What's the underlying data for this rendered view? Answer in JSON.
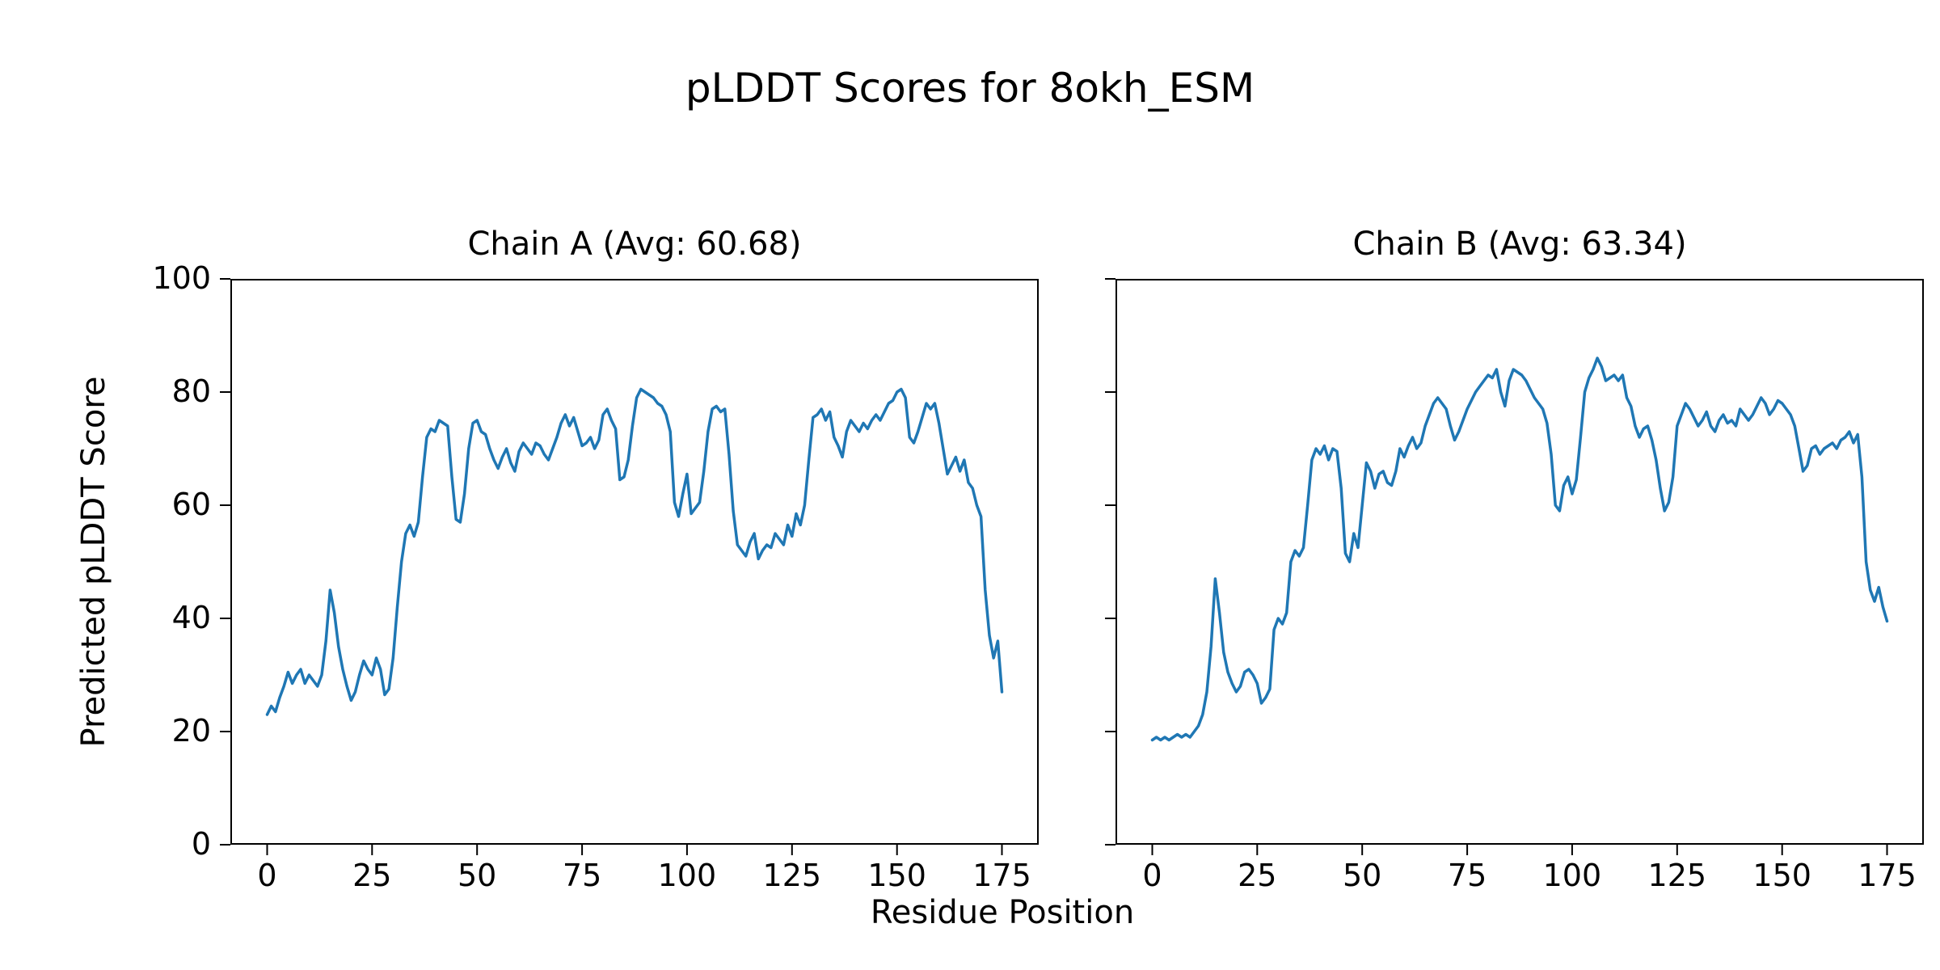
{
  "chart_data": {
    "type": "line",
    "title": "pLDDT Scores for 8okh_ESM",
    "xlabel": "Residue Position",
    "ylabel": "Predicted pLDDT Score",
    "line_color": "#1f77b4",
    "grid": false,
    "legend": "none",
    "xlim": [
      -8.75,
      183.75
    ],
    "ylim": [
      0,
      100
    ],
    "xticks": [
      0,
      25,
      50,
      75,
      100,
      125,
      150,
      175
    ],
    "yticks": [
      0,
      20,
      40,
      60,
      80,
      100
    ],
    "subplots": [
      {
        "title": "Chain A (Avg: 60.68)",
        "avg": 60.68,
        "x_start": 0,
        "values": [
          23,
          24.5,
          23.5,
          26,
          28,
          30.5,
          28.5,
          30,
          31,
          28.5,
          30,
          29,
          28,
          30,
          36,
          45,
          41,
          35,
          31,
          28,
          25.5,
          27,
          30,
          32.5,
          31,
          30,
          33,
          31,
          26.5,
          27.5,
          33,
          42,
          50,
          55,
          56.5,
          54.5,
          57,
          65,
          72,
          73.5,
          73,
          75,
          74.5,
          74,
          65,
          57.5,
          57,
          62,
          70,
          74.5,
          75,
          73,
          72.5,
          70,
          68,
          66.5,
          68.5,
          70,
          67.5,
          66,
          69.5,
          71,
          70,
          69,
          71,
          70.5,
          69,
          68,
          70,
          72,
          74.5,
          76,
          74,
          75.5,
          73,
          70.5,
          71,
          72,
          70,
          71.5,
          76,
          77,
          75,
          73.5,
          64.5,
          65,
          68,
          74,
          79,
          80.5,
          80,
          79.5,
          79,
          78,
          77.5,
          76,
          73,
          60.5,
          58,
          62,
          65.5,
          58.5,
          59.5,
          60.5,
          66,
          73,
          77,
          77.5,
          76.5,
          77,
          69,
          59,
          53,
          52,
          51,
          53.5,
          55,
          50.5,
          52,
          53,
          52.5,
          55,
          54,
          53,
          56.5,
          54.5,
          58.5,
          56.5,
          60,
          68,
          75.5,
          76,
          77,
          75,
          76.5,
          72,
          70.5,
          68.5,
          73,
          75,
          74,
          73,
          74.5,
          73.5,
          75,
          76,
          75,
          76.5,
          78,
          78.5,
          80,
          80.5,
          79,
          72,
          71,
          73,
          75.5,
          78,
          77,
          78,
          74.5,
          70,
          65.5,
          67,
          68.5,
          66,
          68,
          64,
          63,
          60,
          58,
          45,
          37,
          33,
          36,
          27
        ]
      },
      {
        "title": "Chain B (Avg: 63.34)",
        "avg": 63.34,
        "x_start": 0,
        "values": [
          18.5,
          19,
          18.5,
          19,
          18.5,
          19,
          19.5,
          19,
          19.5,
          19,
          20,
          21,
          23,
          27,
          35,
          47,
          41,
          34,
          30.5,
          28.5,
          27,
          28,
          30.5,
          31,
          30,
          28.5,
          25,
          26,
          27.5,
          38,
          40,
          39,
          41,
          50,
          52,
          51,
          52.5,
          60,
          68,
          70,
          69,
          70.5,
          68,
          70,
          69.5,
          63,
          51.5,
          50,
          55,
          52.5,
          60,
          67.5,
          66,
          63,
          65.5,
          66,
          64,
          63.5,
          66,
          70,
          68.5,
          70.5,
          72,
          70,
          71,
          74,
          76,
          78,
          79,
          78,
          77,
          74,
          71.5,
          73,
          75,
          77,
          78.5,
          80,
          81,
          82,
          83,
          82.5,
          84,
          80,
          77.5,
          82,
          84,
          83.5,
          83,
          82,
          80.5,
          79,
          78,
          77,
          74.5,
          69,
          60,
          59,
          63.5,
          65,
          62,
          64.5,
          72,
          80,
          82.5,
          84,
          86,
          84.5,
          82,
          82.5,
          83,
          82,
          83,
          79,
          77.5,
          74,
          72,
          73.5,
          74,
          71.5,
          68,
          63,
          59,
          60.5,
          65,
          74,
          76,
          78,
          77,
          75.5,
          74,
          75,
          76.5,
          74,
          73,
          75,
          76,
          74.5,
          75,
          74,
          77,
          76,
          75,
          76,
          77.5,
          79,
          78,
          76,
          77,
          78.5,
          78,
          77,
          76,
          74,
          70,
          66,
          67,
          70,
          70.5,
          69,
          70,
          70.5,
          71,
          70,
          71.5,
          72,
          73,
          71,
          72.5,
          65,
          50,
          45,
          43,
          45.5,
          42,
          39.5
        ]
      }
    ]
  }
}
